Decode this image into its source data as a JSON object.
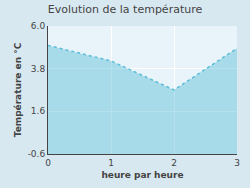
{
  "chart_data": {
    "type": "area",
    "title": "Evolution de la température",
    "xlabel": "heure par heure",
    "ylabel": "Température en °C",
    "x": [
      0,
      1,
      2,
      3
    ],
    "values": [
      5.0,
      4.2,
      2.7,
      4.85
    ],
    "color": "#5bbcd6",
    "line_style": "dotted",
    "xlim": [
      0,
      3
    ],
    "ylim": [
      -0.6,
      6.0
    ],
    "xticks": [
      0,
      1,
      2,
      3
    ],
    "yticks": [
      -0.6,
      1.6,
      3.8,
      {
        "value": 6.0,
        "label": "6.0"
      }
    ],
    "grid": true
  }
}
